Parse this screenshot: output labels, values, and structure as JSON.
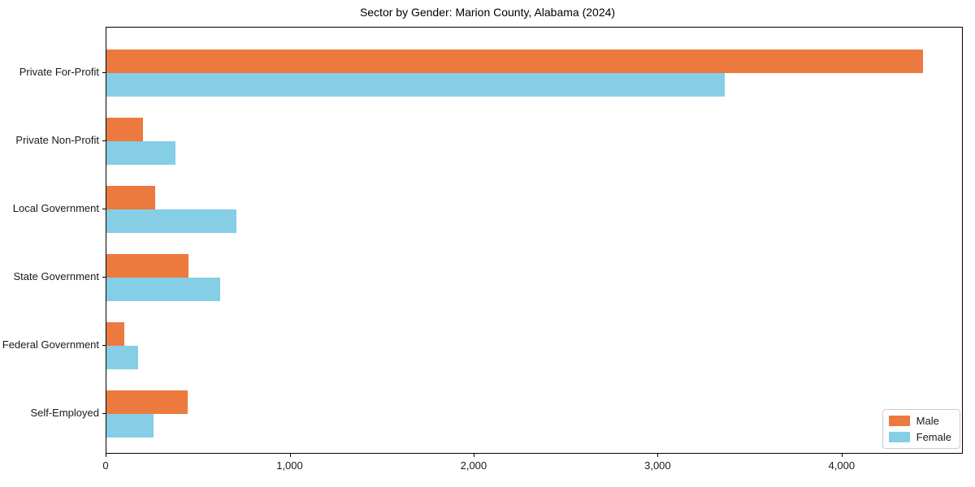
{
  "title": "Sector by Gender: Marion County, Alabama (2024)",
  "colors": {
    "male": "#ec7a3e",
    "female": "#86cee6",
    "axis": "#000000",
    "legend_border": "#cccccc",
    "background": "#ffffff"
  },
  "legend": {
    "position": "lower right",
    "items": [
      {
        "label": "Male",
        "series": "Male"
      },
      {
        "label": "Female",
        "series": "Female"
      }
    ]
  },
  "chart_data": {
    "type": "bar",
    "orientation": "horizontal",
    "title": "Sector by Gender: Marion County, Alabama (2024)",
    "categories": [
      "Private For-Profit",
      "Private Non-Profit",
      "Local Government",
      "State Government",
      "Federal Government",
      "Self-Employed"
    ],
    "series": [
      {
        "name": "Male",
        "color": "#ec7a3e",
        "values": [
          4440,
          200,
          265,
          445,
          95,
          440
        ]
      },
      {
        "name": "Female",
        "color": "#86cee6",
        "values": [
          3360,
          375,
          705,
          620,
          170,
          255
        ]
      }
    ],
    "xlabel": "",
    "ylabel": "",
    "xlim": [
      0,
      4650
    ],
    "xticks": [
      0,
      1000,
      2000,
      3000,
      4000
    ],
    "xtick_labels": [
      "0",
      "1,000",
      "2,000",
      "3,000",
      "4,000"
    ],
    "grid": false,
    "legend_position": "lower right"
  }
}
